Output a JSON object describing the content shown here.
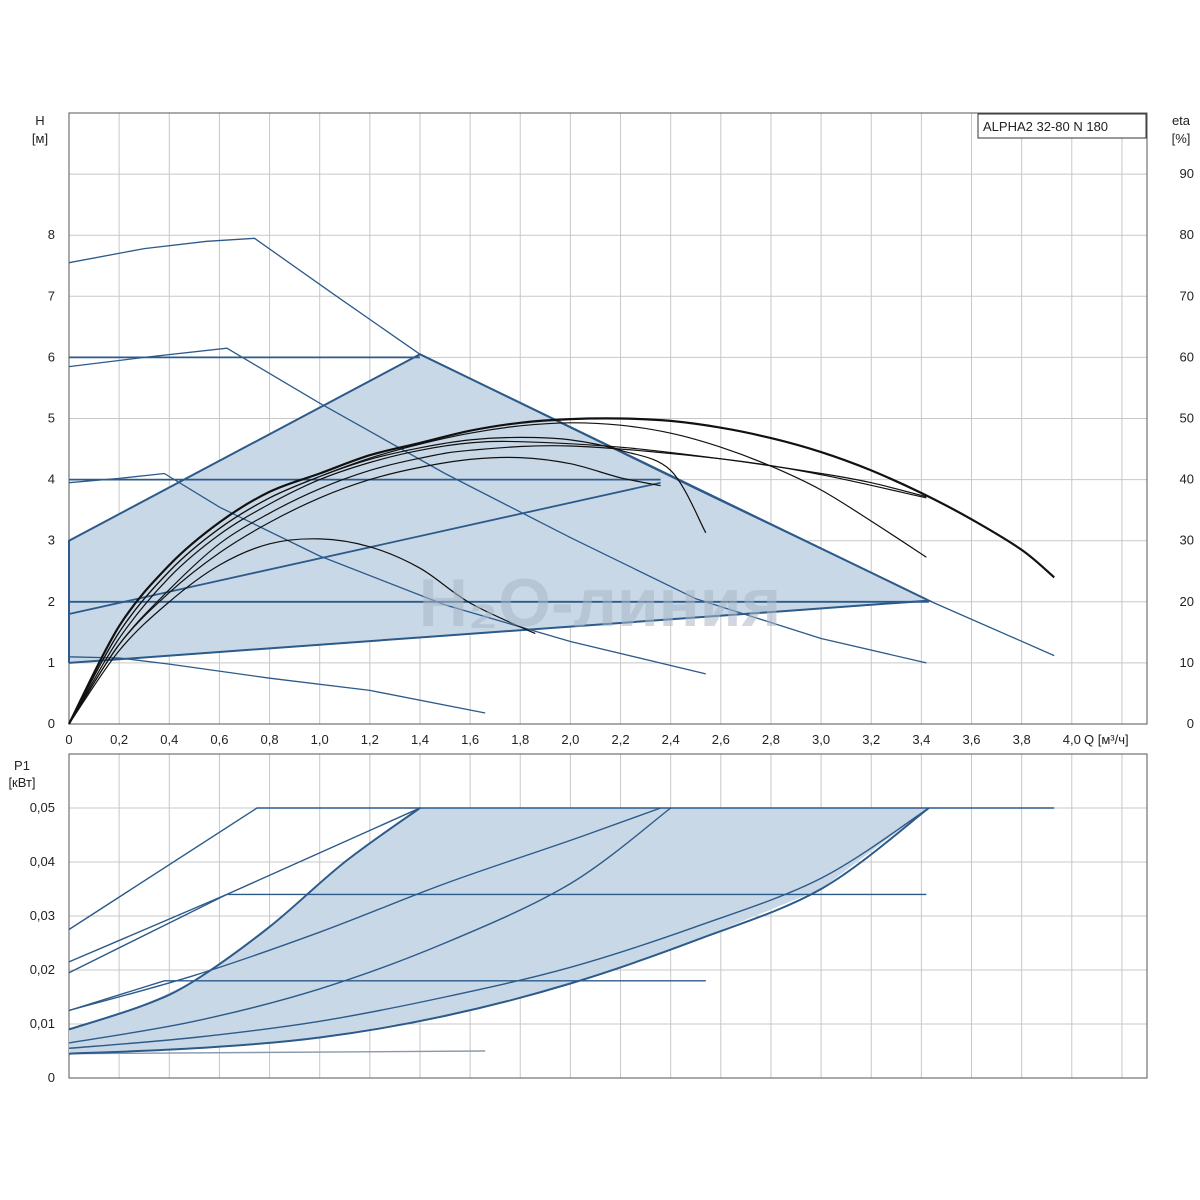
{
  "chart_data": [
    {
      "type": "line",
      "title": "ALPHA2 32-80 N 180",
      "watermark": "H₂O-линия",
      "xlabel": "Q [м³/ч]",
      "ylabel_line1": "H",
      "ylabel_line2": "[м]",
      "y2label_line1": "eta",
      "y2label_line2": "[%]",
      "xlim": [
        0,
        4.3
      ],
      "ylim": [
        0,
        10
      ],
      "y2lim": [
        0,
        100
      ],
      "xticks": [
        "0",
        "0,2",
        "0,4",
        "0,6",
        "0,8",
        "1,0",
        "1,2",
        "1,4",
        "1,6",
        "1,8",
        "2,0",
        "2,2",
        "2,4",
        "2,6",
        "2,8",
        "3,0",
        "3,2",
        "3,4",
        "3,6",
        "3,8",
        "4,0"
      ],
      "yticks": [
        "0",
        "1",
        "2",
        "3",
        "4",
        "5",
        "6",
        "7",
        "8"
      ],
      "y2ticks": [
        "0",
        "10",
        "20",
        "30",
        "40",
        "50",
        "60",
        "70",
        "80",
        "90"
      ],
      "fill_color": "#c9d8e6",
      "series_color": "#2c5a8a",
      "eta_color": "#111111",
      "operating_area": [
        [
          0,
          1
        ],
        [
          0,
          3
        ],
        [
          1.4,
          6.05
        ],
        [
          3.43,
          2.02
        ],
        [
          0,
          1
        ]
      ],
      "head_curves": [
        [
          [
            0,
            7.55
          ],
          [
            0.3,
            7.78
          ],
          [
            0.55,
            7.9
          ],
          [
            0.74,
            7.95
          ],
          [
            1.05,
            7.05
          ],
          [
            1.4,
            6.05
          ],
          [
            2.5,
            3.85
          ],
          [
            3.43,
            2.02
          ],
          [
            3.93,
            1.12
          ]
        ],
        [
          [
            0,
            5.85
          ],
          [
            0.3,
            6.0
          ],
          [
            0.63,
            6.15
          ],
          [
            1.0,
            5.25
          ],
          [
            1.5,
            4.1
          ],
          [
            2.0,
            3.05
          ],
          [
            2.5,
            2.05
          ],
          [
            3.0,
            1.4
          ],
          [
            3.42,
            1.0
          ]
        ],
        [
          [
            0,
            3.95
          ],
          [
            0.2,
            4.02
          ],
          [
            0.38,
            4.1
          ],
          [
            0.6,
            3.55
          ],
          [
            1.0,
            2.75
          ],
          [
            1.5,
            1.95
          ],
          [
            2.0,
            1.35
          ],
          [
            2.54,
            0.82
          ]
        ],
        [
          [
            0,
            1.1
          ],
          [
            0.2,
            1.08
          ],
          [
            0.4,
            0.98
          ],
          [
            0.8,
            0.75
          ],
          [
            1.2,
            0.55
          ],
          [
            1.66,
            0.18
          ]
        ],
        [
          [
            0,
            6.0
          ],
          [
            1.4,
            6.0
          ]
        ],
        [
          [
            0,
            4.0
          ],
          [
            2.36,
            4.0
          ]
        ],
        [
          [
            0,
            2.0
          ],
          [
            3.43,
            2.0
          ]
        ],
        [
          [
            0,
            1.8
          ],
          [
            2.36,
            3.95
          ]
        ]
      ],
      "eta_curves": [
        [
          [
            0,
            0
          ],
          [
            0.2,
            16
          ],
          [
            0.4,
            26
          ],
          [
            0.6,
            33
          ],
          [
            0.8,
            38
          ],
          [
            1.0,
            41
          ],
          [
            1.2,
            44
          ],
          [
            1.4,
            46
          ],
          [
            1.6,
            48
          ],
          [
            1.8,
            49.3
          ],
          [
            2.0,
            49.9
          ],
          [
            2.2,
            50
          ],
          [
            2.4,
            49.6
          ],
          [
            2.6,
            48.5
          ],
          [
            2.8,
            46.8
          ],
          [
            3.0,
            44.5
          ],
          [
            3.2,
            41.5
          ],
          [
            3.4,
            37.8
          ],
          [
            3.6,
            33.5
          ],
          [
            3.8,
            28.5
          ],
          [
            3.93,
            24
          ]
        ],
        [
          [
            0,
            0
          ],
          [
            0.2,
            15
          ],
          [
            0.4,
            25
          ],
          [
            0.6,
            32
          ],
          [
            0.8,
            37
          ],
          [
            1.0,
            40.5
          ],
          [
            1.2,
            43.5
          ],
          [
            1.4,
            45.8
          ],
          [
            1.6,
            47.6
          ],
          [
            1.8,
            48.8
          ],
          [
            2.0,
            49.3
          ],
          [
            2.2,
            48.9
          ],
          [
            2.4,
            47.6
          ],
          [
            2.6,
            45.3
          ],
          [
            2.8,
            42.2
          ],
          [
            3.0,
            38.3
          ],
          [
            3.2,
            33.2
          ],
          [
            3.42,
            27.3
          ]
        ],
        [
          [
            0,
            0
          ],
          [
            0.2,
            15
          ],
          [
            0.4,
            25
          ],
          [
            0.6,
            32
          ],
          [
            0.8,
            37
          ],
          [
            1.0,
            40.5
          ],
          [
            1.2,
            43.3
          ],
          [
            1.4,
            45.2
          ],
          [
            1.6,
            46.5
          ],
          [
            1.8,
            46.9
          ],
          [
            2.0,
            46.5
          ],
          [
            2.2,
            44.8
          ],
          [
            2.4,
            41.5
          ],
          [
            2.54,
            31.3
          ]
        ],
        [
          [
            0,
            0
          ],
          [
            0.2,
            14
          ],
          [
            0.4,
            24
          ],
          [
            0.6,
            31
          ],
          [
            0.8,
            36
          ],
          [
            1.0,
            40
          ],
          [
            1.2,
            42.8
          ],
          [
            1.4,
            44.8
          ],
          [
            1.6,
            46
          ],
          [
            1.8,
            46.2
          ],
          [
            2.2,
            45.3
          ],
          [
            2.6,
            43.4
          ],
          [
            3.0,
            41
          ],
          [
            3.2,
            39.5
          ],
          [
            3.42,
            37.2
          ]
        ],
        [
          [
            0,
            0
          ],
          [
            0.2,
            13
          ],
          [
            0.4,
            22
          ],
          [
            0.6,
            29.5
          ],
          [
            0.8,
            34.5
          ],
          [
            1.0,
            38.5
          ],
          [
            1.2,
            41.5
          ],
          [
            1.4,
            43.5
          ],
          [
            1.6,
            44.8
          ],
          [
            2.0,
            45.5
          ],
          [
            2.6,
            43.4
          ],
          [
            3.0,
            40.8
          ],
          [
            3.42,
            37
          ]
        ],
        [
          [
            0,
            0
          ],
          [
            0.2,
            13
          ],
          [
            0.4,
            21.5
          ],
          [
            0.6,
            28
          ],
          [
            0.8,
            33
          ],
          [
            1.0,
            37
          ],
          [
            1.2,
            40
          ],
          [
            1.4,
            42
          ],
          [
            1.6,
            43.3
          ],
          [
            1.8,
            43.6
          ],
          [
            2.0,
            42.6
          ],
          [
            2.2,
            40.3
          ],
          [
            2.36,
            39
          ]
        ],
        [
          [
            0,
            0
          ],
          [
            0.2,
            12
          ],
          [
            0.4,
            20
          ],
          [
            0.6,
            26
          ],
          [
            0.8,
            29.5
          ],
          [
            1.0,
            30.3
          ],
          [
            1.2,
            29
          ],
          [
            1.4,
            25.5
          ],
          [
            1.6,
            19.8
          ],
          [
            1.86,
            14.8
          ]
        ]
      ]
    },
    {
      "type": "line",
      "ylabel_line1": "P1",
      "ylabel_line2": "[кВт]",
      "xlim": [
        0,
        4.3
      ],
      "ylim": [
        0,
        0.06
      ],
      "yticks": [
        "0",
        "0,01",
        "0,02",
        "0,03",
        "0,04",
        "0,05"
      ],
      "operating_area": [
        [
          0,
          0.0045
        ],
        [
          0.5,
          0.0055
        ],
        [
          1.0,
          0.0075
        ],
        [
          1.5,
          0.0115
        ],
        [
          2.0,
          0.0175
        ],
        [
          2.5,
          0.0255
        ],
        [
          3.0,
          0.035
        ],
        [
          3.43,
          0.05
        ],
        [
          1.4,
          0.05
        ],
        [
          1.1,
          0.04
        ],
        [
          0.8,
          0.028
        ],
        [
          0.5,
          0.018
        ],
        [
          0.3,
          0.0135
        ],
        [
          0,
          0.009
        ]
      ],
      "power_curves": [
        [
          [
            0,
            0.0275
          ],
          [
            0.75,
            0.05
          ],
          [
            1.4,
            0.05
          ]
        ],
        [
          [
            0,
            0.0215
          ],
          [
            0.63,
            0.034
          ],
          [
            1.4,
            0.05
          ],
          [
            3.93,
            0.05
          ]
        ],
        [
          [
            0,
            0.0195
          ],
          [
            0.63,
            0.034
          ],
          [
            3.42,
            0.034
          ]
        ],
        [
          [
            0,
            0.0125
          ],
          [
            0.38,
            0.018
          ],
          [
            2.54,
            0.018
          ]
        ],
        [
          [
            0,
            0.0045
          ],
          [
            1.66,
            0.005
          ]
        ],
        [
          [
            0,
            0.009
          ],
          [
            0.3,
            0.0135
          ],
          [
            0.5,
            0.018
          ],
          [
            0.8,
            0.028
          ],
          [
            1.1,
            0.04
          ],
          [
            1.4,
            0.05
          ]
        ],
        [
          [
            0,
            0.0125
          ],
          [
            0.5,
            0.019
          ],
          [
            1.0,
            0.027
          ],
          [
            1.5,
            0.036
          ],
          [
            2.0,
            0.044
          ],
          [
            2.36,
            0.05
          ]
        ],
        [
          [
            0,
            0.0065
          ],
          [
            0.5,
            0.0105
          ],
          [
            1.0,
            0.0165
          ],
          [
            1.5,
            0.025
          ],
          [
            2.0,
            0.036
          ],
          [
            2.4,
            0.05
          ]
        ],
        [
          [
            0,
            0.0055
          ],
          [
            0.5,
            0.0075
          ],
          [
            1.0,
            0.0105
          ],
          [
            1.5,
            0.015
          ],
          [
            2.0,
            0.0205
          ],
          [
            2.5,
            0.028
          ],
          [
            3.0,
            0.037
          ],
          [
            3.43,
            0.05
          ]
        ],
        [
          [
            0,
            0.0045
          ],
          [
            0.5,
            0.0055
          ],
          [
            1.0,
            0.0075
          ],
          [
            1.5,
            0.0115
          ],
          [
            2.0,
            0.0175
          ],
          [
            2.5,
            0.0255
          ],
          [
            3.0,
            0.035
          ],
          [
            3.43,
            0.05
          ]
        ]
      ]
    }
  ]
}
